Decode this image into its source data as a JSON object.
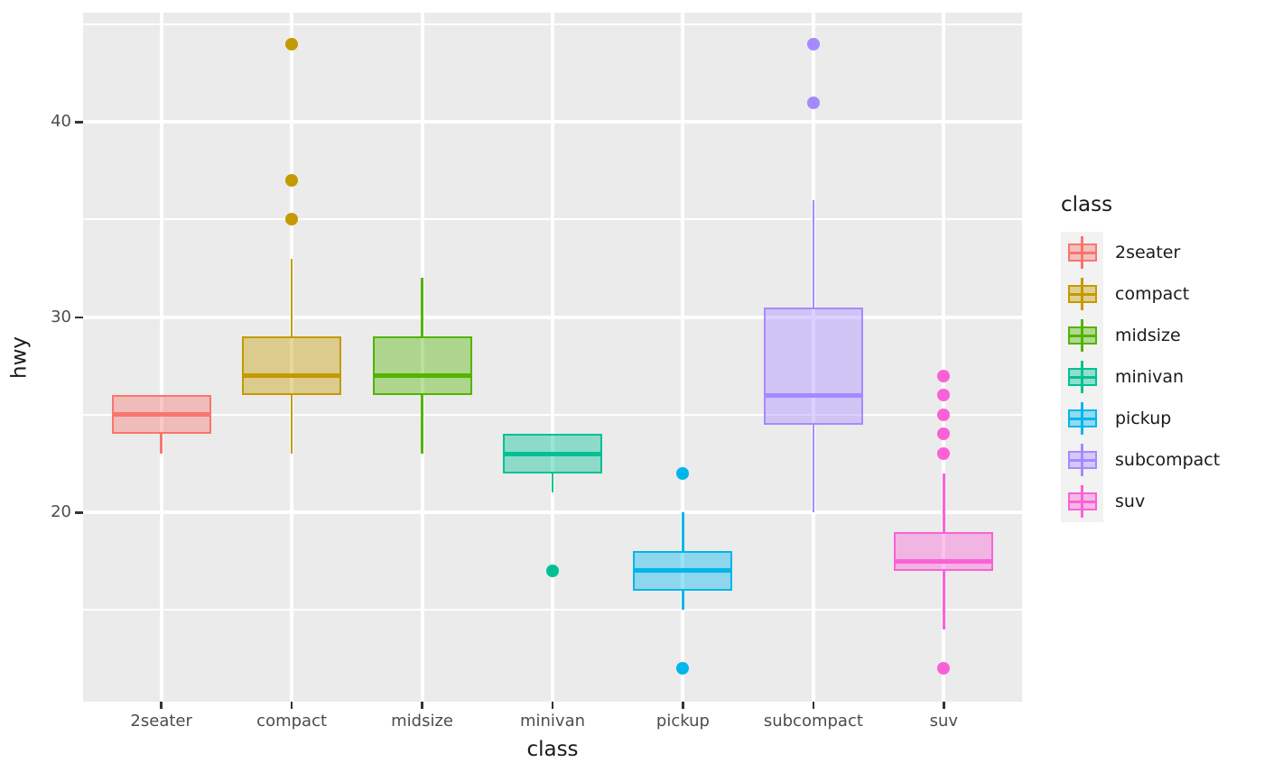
{
  "chart_data": {
    "type": "boxplot",
    "title": "",
    "xlabel": "class",
    "ylabel": "hwy",
    "categories": [
      "2seater",
      "compact",
      "midsize",
      "minivan",
      "pickup",
      "subcompact",
      "suv"
    ],
    "series": [
      {
        "name": "2seater",
        "color": "#F8766D",
        "whisker_low": 23,
        "q1": 24,
        "median": 25,
        "q3": 26,
        "whisker_high": 26,
        "outliers": []
      },
      {
        "name": "compact",
        "color": "#C49A00",
        "whisker_low": 23,
        "q1": 26,
        "median": 27,
        "q3": 29,
        "whisker_high": 33,
        "outliers": [
          35,
          37,
          44
        ]
      },
      {
        "name": "midsize",
        "color": "#53B400",
        "whisker_low": 23,
        "q1": 26,
        "median": 27,
        "q3": 29,
        "whisker_high": 32,
        "outliers": []
      },
      {
        "name": "minivan",
        "color": "#00C094",
        "whisker_low": 21,
        "q1": 22,
        "median": 23,
        "q3": 24,
        "whisker_high": 24,
        "outliers": [
          17
        ]
      },
      {
        "name": "pickup",
        "color": "#00B6EB",
        "whisker_low": 15,
        "q1": 16,
        "median": 17,
        "q3": 18,
        "whisker_high": 20,
        "outliers": [
          12,
          22
        ]
      },
      {
        "name": "subcompact",
        "color": "#A58AFF",
        "whisker_low": 20,
        "q1": 24.5,
        "median": 26,
        "q3": 30.5,
        "whisker_high": 36,
        "outliers": [
          41,
          44
        ]
      },
      {
        "name": "suv",
        "color": "#FB61D7",
        "whisker_low": 14,
        "q1": 17,
        "median": 17.5,
        "q3": 19,
        "whisker_high": 22,
        "outliers": [
          12,
          23,
          24,
          25,
          26,
          27
        ]
      }
    ],
    "ylim": [
      10.3,
      45.6
    ],
    "yticks_major": [
      20,
      30,
      40
    ],
    "yticks_minor": [
      15,
      25,
      35,
      45
    ],
    "grid": "on",
    "fill_alpha": 0.4,
    "panel_background": "#EBEBEB",
    "gridline_color": "#FFFFFF",
    "tick_label_color": "#4D4D4D",
    "legend": {
      "title": "class",
      "position": "right",
      "key_background": "#F2F2F2",
      "entries": [
        "2seater",
        "compact",
        "midsize",
        "minivan",
        "pickup",
        "subcompact",
        "suv"
      ]
    }
  }
}
